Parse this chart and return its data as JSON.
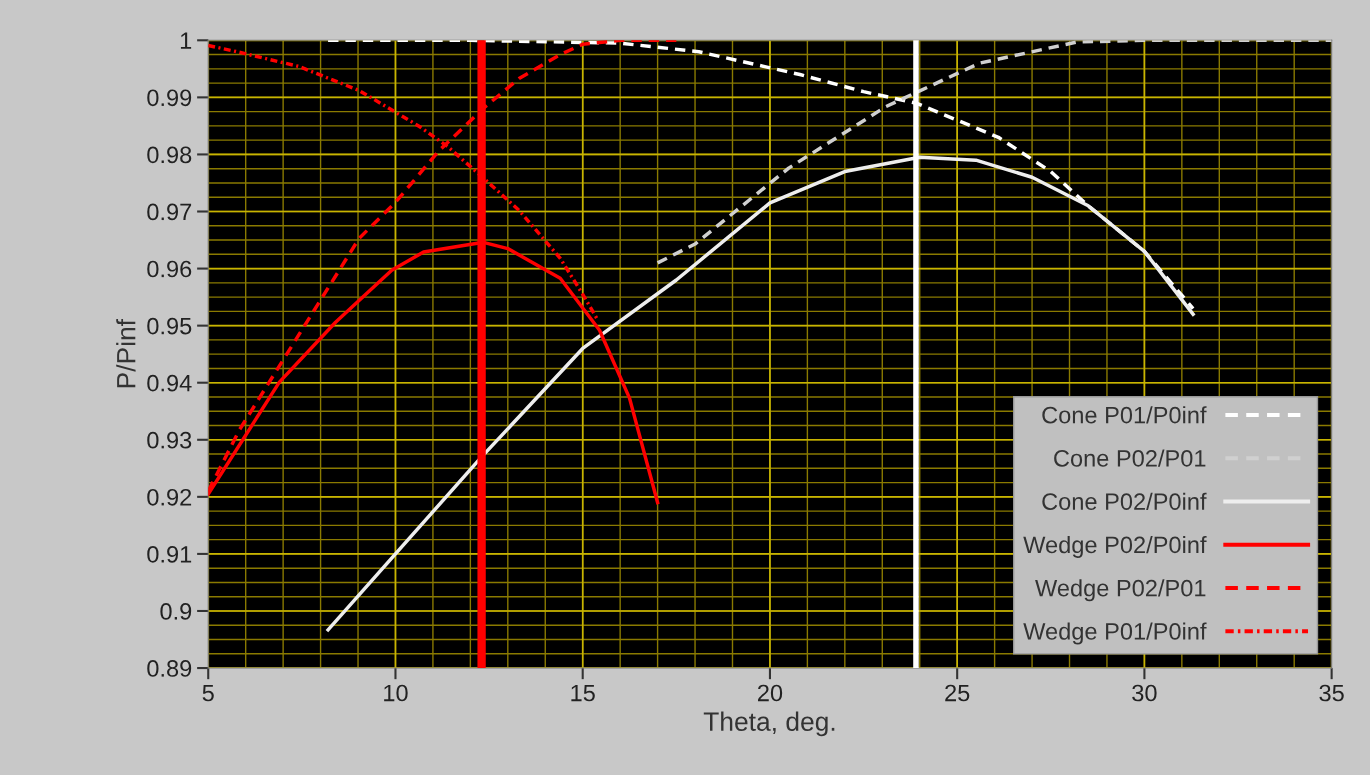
{
  "chart_data": {
    "type": "line",
    "xlabel": "Theta, deg.",
    "ylabel": "P/Pinf",
    "xlim": [
      5,
      35
    ],
    "xticks": [
      5,
      10,
      15,
      20,
      25,
      30,
      35
    ],
    "ylim": [
      0.89,
      1
    ],
    "yticks": [
      0.89,
      0.9,
      0.91,
      0.92,
      0.93,
      0.94,
      0.95,
      0.96,
      0.97,
      0.98,
      0.99,
      1
    ],
    "grid": true,
    "legend": "bottom right",
    "series": [
      {
        "name": "Cone P01/P0inf",
        "color": "#ffffff",
        "line_style": "dashed",
        "x": [
          8.2,
          12,
          16,
          18.1,
          20.8,
          22.5,
          23.9,
          25,
          26.1,
          27.5,
          28.5,
          30,
          31.3
        ],
        "values": [
          1,
          1,
          0.9995,
          0.998,
          0.994,
          0.991,
          0.989,
          0.986,
          0.983,
          0.977,
          0.971,
          0.963,
          0.953
        ]
      },
      {
        "name": "Cone P02/P01",
        "color": "#d0d0d0",
        "line_style": "dashed",
        "x": [
          17,
          18,
          20.5,
          23.1,
          25.6,
          28.2,
          30,
          35
        ],
        "values": [
          0.961,
          0.9643,
          0.9776,
          0.9884,
          0.996,
          0.9997,
          1,
          1
        ]
      },
      {
        "name": "Cone P02/P0inf",
        "color": "#eeeeee",
        "line_style": "solid",
        "x": [
          8.2,
          10,
          12.3,
          15,
          17.5,
          20,
          22,
          24,
          25.5,
          27,
          28.5,
          30,
          31.3
        ],
        "values": [
          0.8967,
          0.91,
          0.927,
          0.946,
          0.958,
          0.9715,
          0.977,
          0.9795,
          0.979,
          0.976,
          0.971,
          0.963,
          0.952
        ]
      },
      {
        "name": "Wedge P02/P0inf",
        "color": "#ff0000",
        "line_style": "solid",
        "x": [
          5,
          6.9,
          8.4,
          9.9,
          10.75,
          12.35,
          13,
          14.4,
          15.45,
          16.25,
          17
        ],
        "values": [
          0.9205,
          0.9401,
          0.9506,
          0.9597,
          0.9629,
          0.9646,
          0.9635,
          0.9583,
          0.9492,
          0.9373,
          0.919
        ]
      },
      {
        "name": "Wedge P02/P01",
        "color": "#ff0000",
        "line_style": "dashed",
        "x": [
          5,
          5.83,
          7.43,
          9.03,
          10,
          11.17,
          12.35,
          13.3,
          14.4,
          15,
          16,
          17.5
        ],
        "values": [
          0.921,
          0.9317,
          0.9485,
          0.9653,
          0.9716,
          0.9807,
          0.9881,
          0.9933,
          0.9975,
          0.9993,
          1,
          1
        ]
      },
      {
        "name": "Wedge P01/P0inf",
        "color": "#ff0000",
        "line_style": "dotted",
        "x": [
          5,
          5.83,
          7.43,
          9.03,
          10.64,
          11.39,
          12.24,
          13.3,
          14.4,
          15,
          15.4
        ],
        "values": [
          0.9991,
          0.9979,
          0.9954,
          0.9912,
          0.9849,
          0.9814,
          0.9765,
          0.9702,
          0.9618,
          0.9555,
          0.951
        ]
      }
    ],
    "ref_lines": [
      {
        "axis": "x",
        "value": 12.3,
        "color": "#ff0000"
      },
      {
        "axis": "x",
        "value": 23.9,
        "color": "#ffffff"
      }
    ]
  }
}
